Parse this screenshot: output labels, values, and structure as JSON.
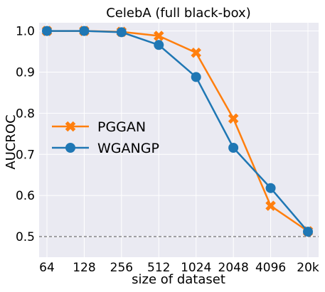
{
  "chart_data": {
    "type": "line",
    "title": "CelebA (full black-box)",
    "xlabel": "size of dataset",
    "ylabel": "AUCROC",
    "categories": [
      "64",
      "128",
      "256",
      "512",
      "1024",
      "2048",
      "4096",
      "20k"
    ],
    "yticks": [
      "0.5",
      "0.6",
      "0.7",
      "0.8",
      "0.9",
      "1.0"
    ],
    "ylim": [
      0.45,
      1.02
    ],
    "grid": true,
    "legend_position": "center-left",
    "reference_line": {
      "y": 0.5,
      "style": "dashed",
      "color": "#555555"
    },
    "series": [
      {
        "name": "PGGAN",
        "color": "#ff7f0e",
        "marker": "x",
        "values": [
          1.0,
          1.0,
          0.998,
          0.988,
          0.947,
          0.787,
          0.575,
          0.513
        ]
      },
      {
        "name": "WGANGP",
        "color": "#1f77b4",
        "marker": "circle",
        "values": [
          1.0,
          1.0,
          0.997,
          0.966,
          0.888,
          0.716,
          0.618,
          0.512
        ]
      }
    ]
  },
  "colors": {
    "plot_background": "#eaeaf2",
    "grid": "#ffffff"
  }
}
